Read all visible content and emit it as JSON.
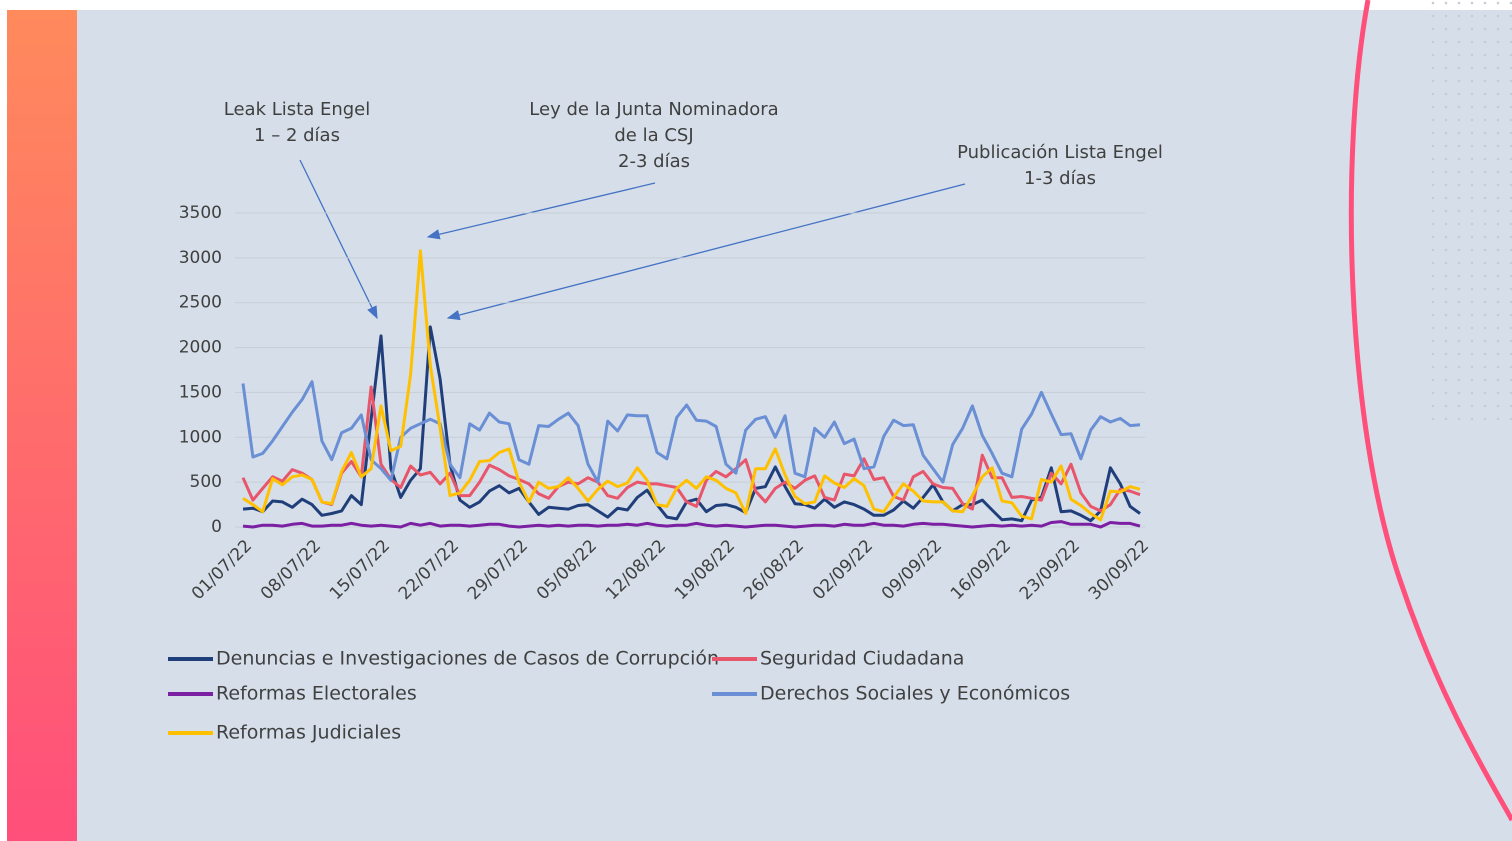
{
  "chart_data": {
    "type": "line",
    "categories": [
      "01/07/22",
      null,
      null,
      null,
      null,
      null,
      null,
      "08/07/22",
      null,
      null,
      null,
      null,
      null,
      null,
      "15/07/22",
      null,
      null,
      null,
      null,
      null,
      null,
      "22/07/22",
      null,
      null,
      null,
      null,
      null,
      null,
      "29/07/22",
      null,
      null,
      null,
      null,
      null,
      null,
      "05/08/22",
      null,
      null,
      null,
      null,
      null,
      null,
      "12/08/22",
      null,
      null,
      null,
      null,
      null,
      null,
      "19/08/22",
      null,
      null,
      null,
      null,
      null,
      null,
      "26/08/22",
      null,
      null,
      null,
      null,
      null,
      null,
      "02/09/22",
      null,
      null,
      null,
      null,
      null,
      null,
      "09/09/22",
      null,
      null,
      null,
      null,
      null,
      null,
      "16/09/22",
      null,
      null,
      null,
      null,
      null,
      null,
      "23/09/22",
      null,
      null,
      null,
      null,
      null,
      null,
      "30/09/22"
    ],
    "ylim": [
      0,
      3500
    ],
    "yticks": [
      0,
      500,
      1000,
      1500,
      2000,
      2500,
      3000,
      3500
    ],
    "grid": true,
    "series": [
      {
        "name": "Denuncias e Investigaciones de Casos de Corrupción",
        "color": "#203f7a",
        "values": [
          200,
          210,
          170,
          290,
          280,
          220,
          310,
          250,
          130,
          150,
          180,
          350,
          250,
          1200,
          2130,
          650,
          330,
          520,
          650,
          2230,
          1650,
          700,
          300,
          220,
          280,
          400,
          460,
          380,
          430,
          280,
          140,
          220,
          210,
          200,
          240,
          250,
          180,
          110,
          210,
          190,
          330,
          410,
          250,
          110,
          90,
          280,
          310,
          170,
          240,
          250,
          220,
          160,
          430,
          450,
          670,
          450,
          260,
          250,
          210,
          310,
          220,
          280,
          250,
          200,
          130,
          130,
          190,
          290,
          210,
          330,
          470,
          280,
          180,
          250,
          250,
          300,
          190,
          80,
          90,
          70,
          300,
          330,
          660,
          170,
          180,
          130,
          70,
          180,
          660,
          480,
          230,
          150
        ]
      },
      {
        "name": "Seguridad Ciudadana",
        "color": "#e8566b",
        "values": [
          550,
          300,
          430,
          560,
          510,
          640,
          600,
          530,
          280,
          250,
          600,
          730,
          560,
          1560,
          700,
          530,
          440,
          680,
          580,
          610,
          480,
          600,
          350,
          350,
          500,
          690,
          640,
          570,
          530,
          480,
          370,
          320,
          450,
          500,
          480,
          550,
          500,
          350,
          320,
          440,
          500,
          480,
          480,
          460,
          440,
          280,
          230,
          520,
          620,
          560,
          650,
          750,
          400,
          280,
          430,
          500,
          430,
          520,
          570,
          330,
          300,
          590,
          570,
          760,
          530,
          550,
          340,
          300,
          560,
          620,
          480,
          440,
          430,
          260,
          200,
          800,
          550,
          550,
          330,
          340,
          320,
          300,
          600,
          480,
          700,
          380,
          230,
          180,
          250,
          420,
          400,
          360
        ]
      },
      {
        "name": "Reformas Electorales",
        "color": "#7b1fa3",
        "values": [
          10,
          0,
          20,
          20,
          10,
          30,
          40,
          10,
          10,
          20,
          20,
          40,
          20,
          10,
          20,
          10,
          0,
          40,
          20,
          40,
          10,
          20,
          20,
          10,
          20,
          30,
          30,
          10,
          0,
          10,
          20,
          10,
          20,
          10,
          20,
          20,
          10,
          20,
          20,
          30,
          20,
          40,
          20,
          10,
          20,
          20,
          40,
          20,
          10,
          20,
          10,
          0,
          10,
          20,
          20,
          10,
          0,
          10,
          20,
          20,
          10,
          30,
          20,
          20,
          40,
          20,
          20,
          10,
          30,
          40,
          30,
          30,
          20,
          10,
          0,
          10,
          20,
          10,
          20,
          10,
          20,
          10,
          50,
          60,
          30,
          30,
          30,
          0,
          50,
          40,
          40,
          10
        ]
      },
      {
        "name": "Derechos Sociales y Económicos",
        "color": "#6a8fd4",
        "values": [
          1600,
          780,
          820,
          960,
          1120,
          1280,
          1420,
          1620,
          960,
          750,
          1050,
          1100,
          1250,
          750,
          650,
          520,
          1000,
          1100,
          1150,
          1200,
          1150,
          700,
          550,
          1150,
          1080,
          1270,
          1170,
          1150,
          750,
          700,
          1130,
          1120,
          1200,
          1270,
          1130,
          700,
          500,
          1180,
          1070,
          1250,
          1240,
          1240,
          830,
          760,
          1220,
          1360,
          1190,
          1180,
          1120,
          700,
          600,
          1080,
          1200,
          1230,
          1000,
          1240,
          600,
          560,
          1100,
          1000,
          1170,
          930,
          980,
          650,
          670,
          1010,
          1190,
          1130,
          1140,
          800,
          650,
          500,
          920,
          1100,
          1350,
          1020,
          820,
          600,
          560,
          1090,
          1260,
          1500,
          1260,
          1030,
          1040,
          760,
          1080,
          1230,
          1170,
          1210,
          1130,
          1140
        ]
      },
      {
        "name": "Reformas Judiciales",
        "color": "#ffc000",
        "values": [
          320,
          250,
          170,
          540,
          470,
          560,
          580,
          530,
          280,
          260,
          620,
          830,
          560,
          650,
          1350,
          850,
          900,
          1700,
          3080,
          1800,
          1100,
          350,
          380,
          520,
          730,
          740,
          830,
          870,
          500,
          280,
          500,
          430,
          450,
          550,
          430,
          290,
          420,
          510,
          450,
          490,
          660,
          520,
          250,
          230,
          430,
          520,
          430,
          560,
          520,
          430,
          380,
          150,
          650,
          650,
          870,
          580,
          340,
          260,
          280,
          570,
          490,
          440,
          540,
          460,
          200,
          170,
          330,
          480,
          400,
          290,
          280,
          280,
          180,
          170,
          350,
          560,
          660,
          290,
          270,
          120,
          90,
          530,
          500,
          680,
          310,
          240,
          150,
          80,
          400,
          390,
          450,
          420
        ]
      }
    ],
    "annotations": [
      {
        "lines": [
          "Leak Lista Engel",
          "1 – 2 días"
        ]
      },
      {
        "lines": [
          "Ley de la Junta Nominadora",
          "de la CSJ",
          "2-3 días"
        ]
      },
      {
        "lines": [
          "Publicación Lista Engel",
          "1-3 días"
        ]
      }
    ]
  }
}
